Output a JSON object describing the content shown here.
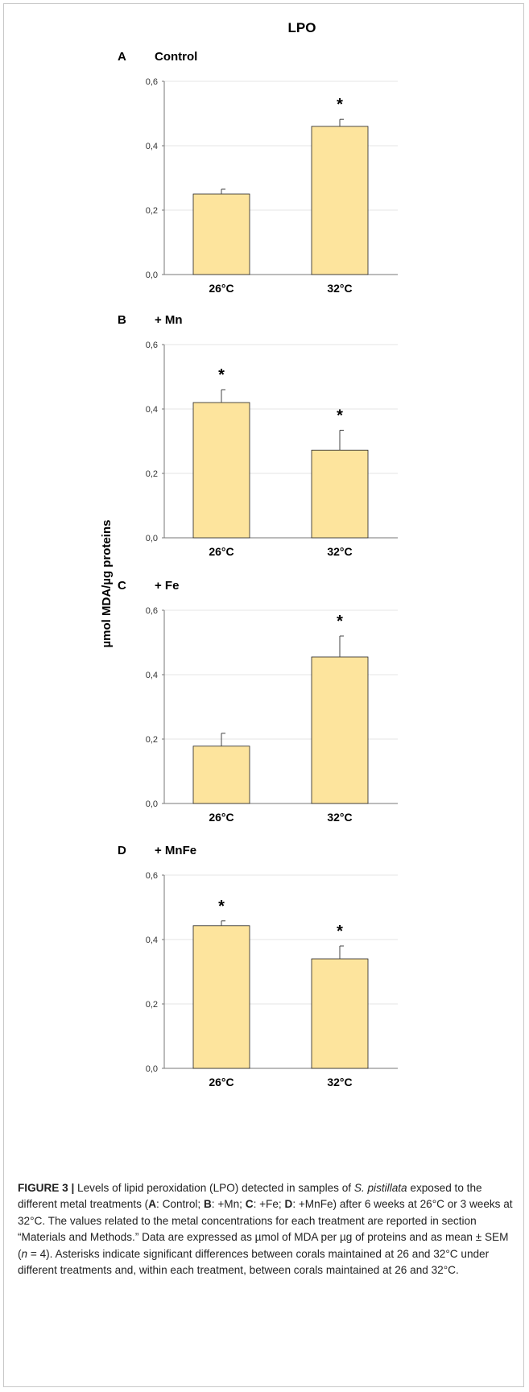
{
  "figure": {
    "title": "LPO",
    "ylabel": "µmol MDA/µg proteins",
    "caption": {
      "label": "FIGURE 3 |",
      "text_1": " Levels of lipid peroxidation (LPO) detected in samples of ",
      "species": "S. pistillata",
      "text_2": " exposed to the different metal treatments (",
      "a": "A",
      "a_text": ": Control; ",
      "b": "B",
      "b_text": ": +Mn; ",
      "c": "C",
      "c_text": ": +Fe; ",
      "d": "D",
      "d_text": ": +MnFe) after 6 weeks at 26°C or 3 weeks at 32°C. The values related to the metal concentrations for each treatment are reported in section “Materials and Methods.” Data are expressed as µmol of MDA per µg of proteins and as mean ± SEM (",
      "n": "n",
      "text_3": " = 4). Asterisks indicate significant differences between corals maintained at 26 and 32°C under different treatments and, within each treatment, between corals maintained at 26 and 32°C."
    }
  },
  "colors": {
    "bar_fill": "#fde49d",
    "bar_stroke": "#222222",
    "grid": "#e6e6e6",
    "axis": "#777777"
  },
  "chart_data": [
    {
      "type": "bar",
      "panel": "A",
      "title": "Control",
      "categories": [
        "26°C",
        "32°C"
      ],
      "values": [
        0.25,
        0.46
      ],
      "errors": [
        0.015,
        0.022
      ],
      "significant": [
        false,
        true
      ],
      "ylim": [
        0,
        0.6
      ],
      "yticks": [
        "0,0",
        "0,2",
        "0,4",
        "0,6"
      ]
    },
    {
      "type": "bar",
      "panel": "B",
      "title": "+ Mn",
      "categories": [
        "26°C",
        "32°C"
      ],
      "values": [
        0.42,
        0.272
      ],
      "errors": [
        0.04,
        0.062
      ],
      "significant": [
        true,
        true
      ],
      "ylim": [
        0,
        0.6
      ],
      "yticks": [
        "0,0",
        "0,2",
        "0,4",
        "0,6"
      ]
    },
    {
      "type": "bar",
      "panel": "C",
      "title": "+ Fe",
      "categories": [
        "26°C",
        "32°C"
      ],
      "values": [
        0.178,
        0.455
      ],
      "errors": [
        0.04,
        0.065
      ],
      "significant": [
        false,
        true
      ],
      "ylim": [
        0,
        0.6
      ],
      "yticks": [
        "0,0",
        "0,2",
        "0,4",
        "0,6"
      ]
    },
    {
      "type": "bar",
      "panel": "D",
      "title": "+ MnFe",
      "categories": [
        "26°C",
        "32°C"
      ],
      "values": [
        0.443,
        0.34
      ],
      "errors": [
        0.015,
        0.04
      ],
      "significant": [
        true,
        true
      ],
      "ylim": [
        0,
        0.6
      ],
      "yticks": [
        "0,0",
        "0,2",
        "0,4",
        "0,6"
      ]
    }
  ]
}
